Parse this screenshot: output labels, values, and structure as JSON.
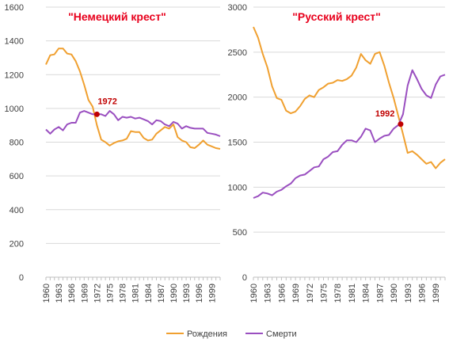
{
  "colors": {
    "births": "#f0a030",
    "deaths": "#9a4fc0",
    "title": "#e8001c",
    "cross_label": "#c00000",
    "grid": "#d9d9d9",
    "axis_text": "#404040"
  },
  "legend": {
    "births": "Рождения",
    "deaths": "Смерти",
    "placement": "bottom"
  },
  "chart_data": [
    {
      "type": "line",
      "title": "\"Немецкий крест\"",
      "xlabel": "",
      "ylabel": "",
      "ylim": [
        0,
        1600
      ],
      "yticks": [
        0,
        200,
        400,
        600,
        800,
        1000,
        1200,
        1400,
        1600
      ],
      "xtick_labels": [
        "1960",
        "1963",
        "1966",
        "1969",
        "1972",
        "1975",
        "1978",
        "1981",
        "1984",
        "1987",
        "1990",
        "1993",
        "1996",
        "1999"
      ],
      "grid": "horizontal",
      "x": [
        1960,
        1961,
        1962,
        1963,
        1964,
        1965,
        1966,
        1967,
        1968,
        1969,
        1970,
        1971,
        1972,
        1973,
        1974,
        1975,
        1976,
        1977,
        1978,
        1979,
        1980,
        1981,
        1982,
        1983,
        1984,
        1985,
        1986,
        1987,
        1988,
        1989,
        1990,
        1991,
        1992,
        1993,
        1994,
        1995,
        1996,
        1997,
        1998,
        1999,
        2000,
        2001
      ],
      "series": [
        {
          "name": "Рождения",
          "color_key": "births",
          "values": [
            1260,
            1315,
            1320,
            1355,
            1355,
            1325,
            1320,
            1280,
            1220,
            1140,
            1050,
            1010,
            900,
            815,
            800,
            780,
            795,
            805,
            810,
            820,
            865,
            860,
            860,
            825,
            810,
            815,
            850,
            870,
            890,
            880,
            905,
            830,
            810,
            800,
            770,
            765,
            785,
            810,
            785,
            775,
            765,
            760
          ]
        },
        {
          "name": "Смерти",
          "color_key": "deaths",
          "values": [
            875,
            850,
            875,
            890,
            870,
            905,
            915,
            915,
            975,
            985,
            975,
            965,
            965,
            965,
            955,
            985,
            965,
            930,
            950,
            945,
            950,
            940,
            945,
            935,
            925,
            905,
            930,
            925,
            905,
            895,
            920,
            910,
            880,
            895,
            885,
            880,
            880,
            880,
            855,
            850,
            845,
            835
          ]
        }
      ],
      "annotation": {
        "text": "1972",
        "x": 1972,
        "y": 965
      }
    },
    {
      "type": "line",
      "title": "\"Русский крест\"",
      "xlabel": "",
      "ylabel": "",
      "ylim": [
        0,
        3000
      ],
      "yticks": [
        0,
        500,
        1000,
        1500,
        2000,
        2500,
        3000
      ],
      "xtick_labels": [
        "1960",
        "1963",
        "1966",
        "1969",
        "1972",
        "1975",
        "1978",
        "1981",
        "1984",
        "1987",
        "1990",
        "1993",
        "1996",
        "1999"
      ],
      "grid": "horizontal",
      "x": [
        1960,
        1961,
        1962,
        1963,
        1964,
        1965,
        1966,
        1967,
        1968,
        1969,
        1970,
        1971,
        1972,
        1973,
        1974,
        1975,
        1976,
        1977,
        1978,
        1979,
        1980,
        1981,
        1982,
        1983,
        1984,
        1985,
        1986,
        1987,
        1988,
        1989,
        1990,
        1991,
        1992,
        1993,
        1994,
        1995,
        1996,
        1997,
        1998,
        1999,
        2000,
        2001
      ],
      "series": [
        {
          "name": "Рождения",
          "color_key": "births",
          "values": [
            2780,
            2660,
            2480,
            2330,
            2120,
            1990,
            1970,
            1850,
            1820,
            1840,
            1900,
            1980,
            2020,
            2000,
            2080,
            2110,
            2150,
            2160,
            2190,
            2180,
            2200,
            2240,
            2330,
            2480,
            2410,
            2370,
            2480,
            2500,
            2350,
            2160,
            1990,
            1790,
            1590,
            1380,
            1400,
            1360,
            1310,
            1260,
            1280,
            1210,
            1270,
            1310
          ]
        },
        {
          "name": "Смерти",
          "color_key": "deaths",
          "values": [
            880,
            900,
            940,
            930,
            910,
            950,
            970,
            1010,
            1040,
            1100,
            1130,
            1140,
            1180,
            1220,
            1230,
            1310,
            1340,
            1390,
            1400,
            1470,
            1520,
            1520,
            1500,
            1560,
            1650,
            1630,
            1500,
            1540,
            1570,
            1580,
            1650,
            1690,
            1810,
            2130,
            2300,
            2200,
            2090,
            2020,
            1990,
            2140,
            2230,
            2250
          ]
        }
      ],
      "annotation": {
        "text": "1992",
        "x": 1991.5,
        "y": 1700
      }
    }
  ]
}
